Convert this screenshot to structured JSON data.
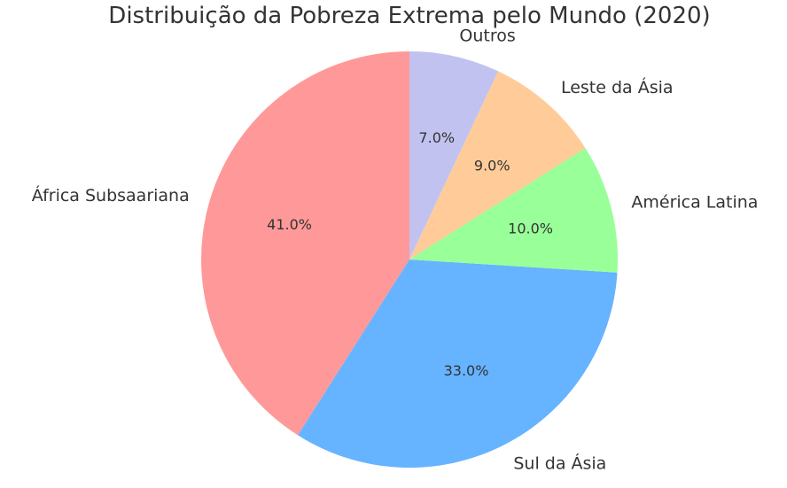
{
  "chart_data": {
    "type": "pie",
    "title": "Distribuição da Pobreza Extrema pelo Mundo (2020)",
    "categories": [
      "África Subsaariana",
      "Sul da Ásia",
      "América Latina",
      "Leste da Ásia",
      "Outros"
    ],
    "values": [
      41.0,
      33.0,
      10.0,
      9.0,
      7.0
    ],
    "percent_labels": [
      "41.0%",
      "33.0%",
      "10.0%",
      "9.0%",
      "7.0%"
    ],
    "colors": [
      "#ff9999",
      "#66b3ff",
      "#99ff99",
      "#ffcc99",
      "#c2c2f0"
    ],
    "start_angle_deg": 90,
    "direction": "counterclockwise",
    "legend": "none"
  }
}
